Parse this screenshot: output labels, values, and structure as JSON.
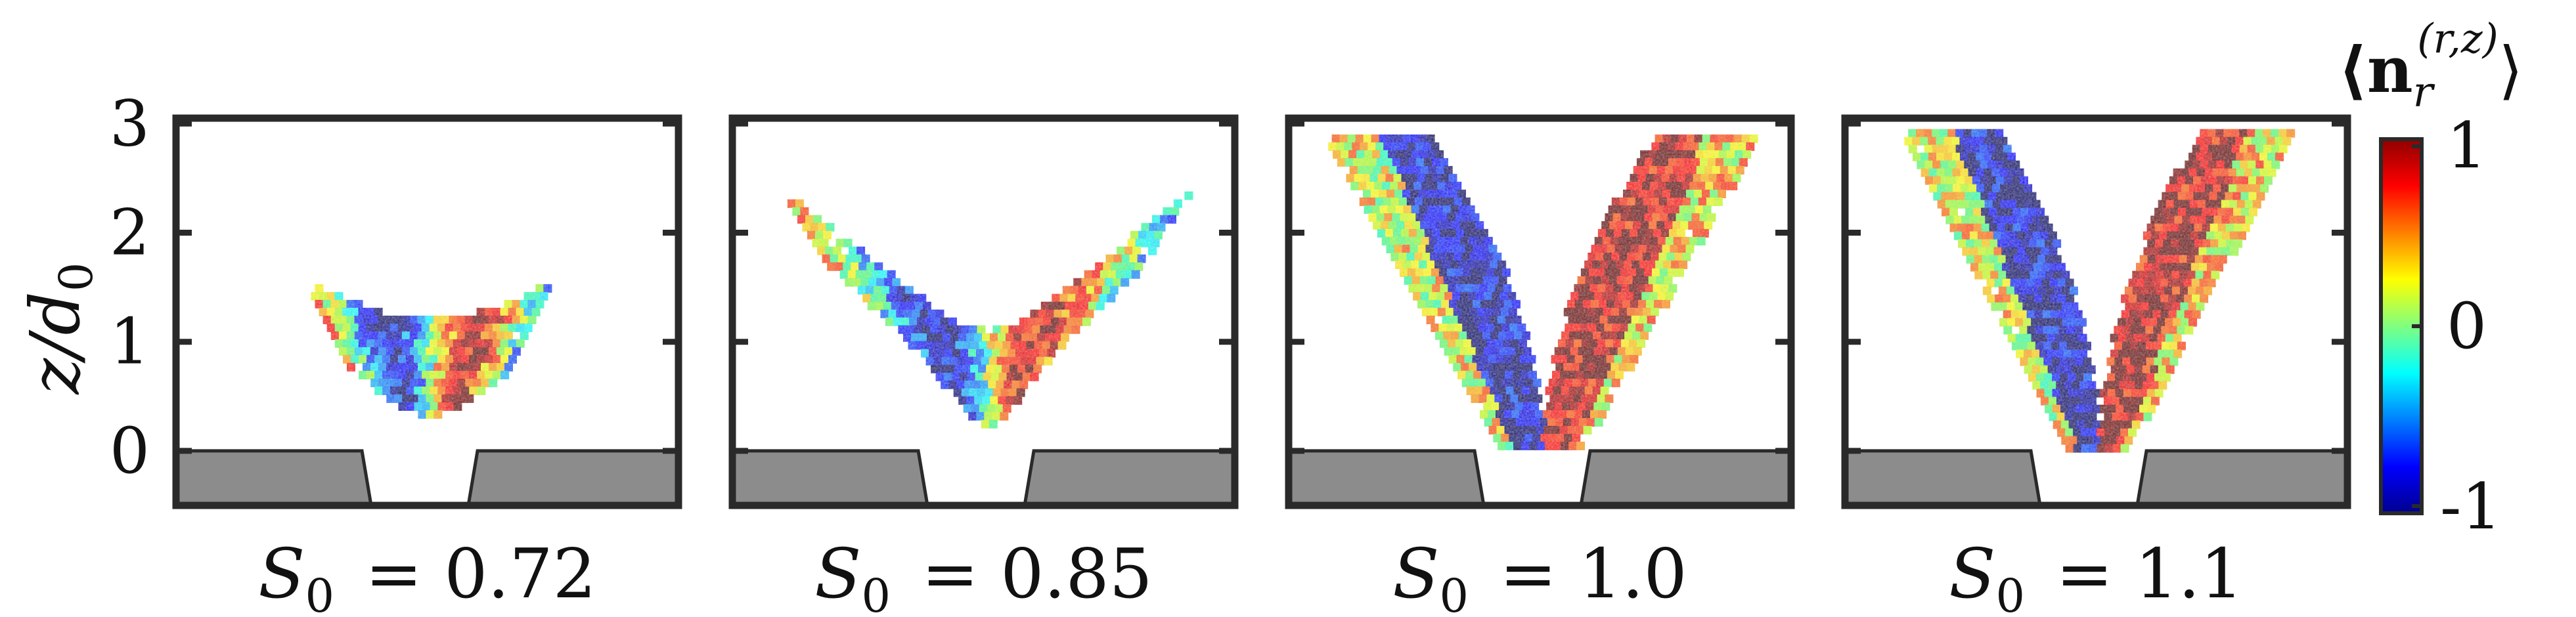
{
  "chart_data": {
    "type": "heatmap",
    "ylabel": "z/d",
    "ylabel_sub": "0",
    "yticks": [
      0,
      1,
      2,
      3
    ],
    "ylim": [
      -0.5,
      3.05
    ],
    "colorbar": {
      "label": "⟨n",
      "label_sub": "r",
      "label_sup": "(r,z)",
      "label_close": "⟩",
      "ticks": [
        "1",
        "0",
        "-1"
      ],
      "range": [
        -1,
        1
      ],
      "colormap": "jet"
    },
    "panels": [
      {
        "label_main": "S",
        "label_sub": "0",
        "label_value": "= 0.72",
        "S0": 0.72
      },
      {
        "label_main": "S",
        "label_sub": "0",
        "label_value": "= 0.85",
        "S0": 0.85
      },
      {
        "label_main": "S",
        "label_sub": "0",
        "label_value": "= 1.0",
        "S0": 1.0
      },
      {
        "label_main": "S",
        "label_sub": "0",
        "label_value": "= 1.1",
        "S0": 1.1
      }
    ],
    "colors": {
      "frame": "#2a2a2a",
      "nozzle_fill": "#8c8c8c",
      "neg": "#00008f",
      "zero": "#80ff80",
      "pos": "#8f0000"
    }
  }
}
